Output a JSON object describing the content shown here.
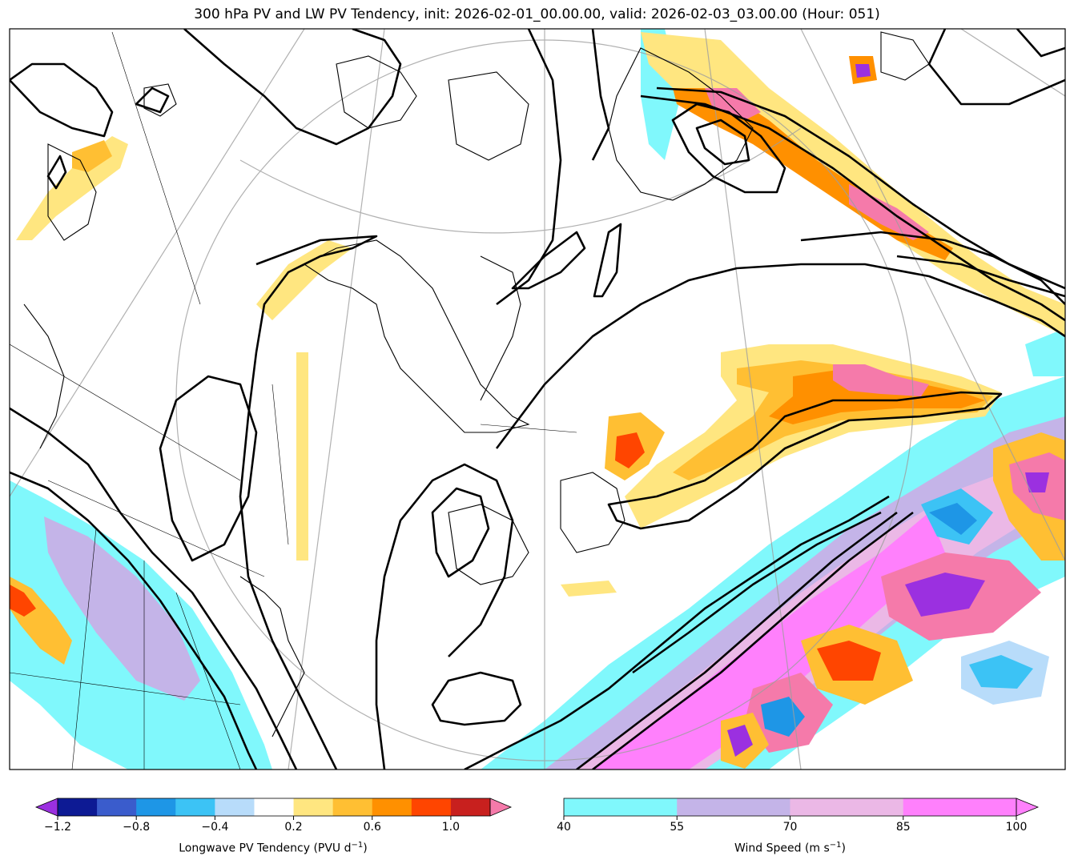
{
  "title": "300 hPa PV and LW PV Tendency, init: 2026-02-01_00.00.00, valid: 2026-02-03_03.00.00 (Hour: 051)",
  "pv_colorbar": {
    "label": "Longwave PV Tendency (PVU d",
    "label_sup": "−1",
    "label_end": ")",
    "ticks": [
      "−1.2",
      "−0.8",
      "−0.4",
      "0.2",
      "0.6",
      "1.0"
    ],
    "tick_values": [
      -1.2,
      -0.8,
      -0.4,
      0.2,
      0.6,
      1.0
    ],
    "levels": [
      -1.2,
      -1.0,
      -0.8,
      -0.6,
      -0.4,
      -0.2,
      0.2,
      0.4,
      0.6,
      0.8,
      1.0,
      1.2
    ],
    "colors": [
      "#0d1a94",
      "#3a5ccc",
      "#1e96e6",
      "#3cc3f5",
      "#b8dcfa",
      "#ffffff",
      "#ffe680",
      "#ffbf33",
      "#ff9000",
      "#ff4500",
      "#c8201e"
    ],
    "under_color": "#9b30e0",
    "over_color": "#f57aaa"
  },
  "wind_colorbar": {
    "label": "Wind Speed (m s",
    "label_sup": "−1",
    "label_end": ")",
    "ticks": [
      "40",
      "55",
      "70",
      "85",
      "100"
    ],
    "tick_values": [
      40,
      55,
      70,
      85,
      100
    ],
    "colors": [
      "#80f8fc",
      "#c4b4e8",
      "#ebb8e6",
      "#ff80fc"
    ],
    "over_color": "#ff80fc"
  }
}
